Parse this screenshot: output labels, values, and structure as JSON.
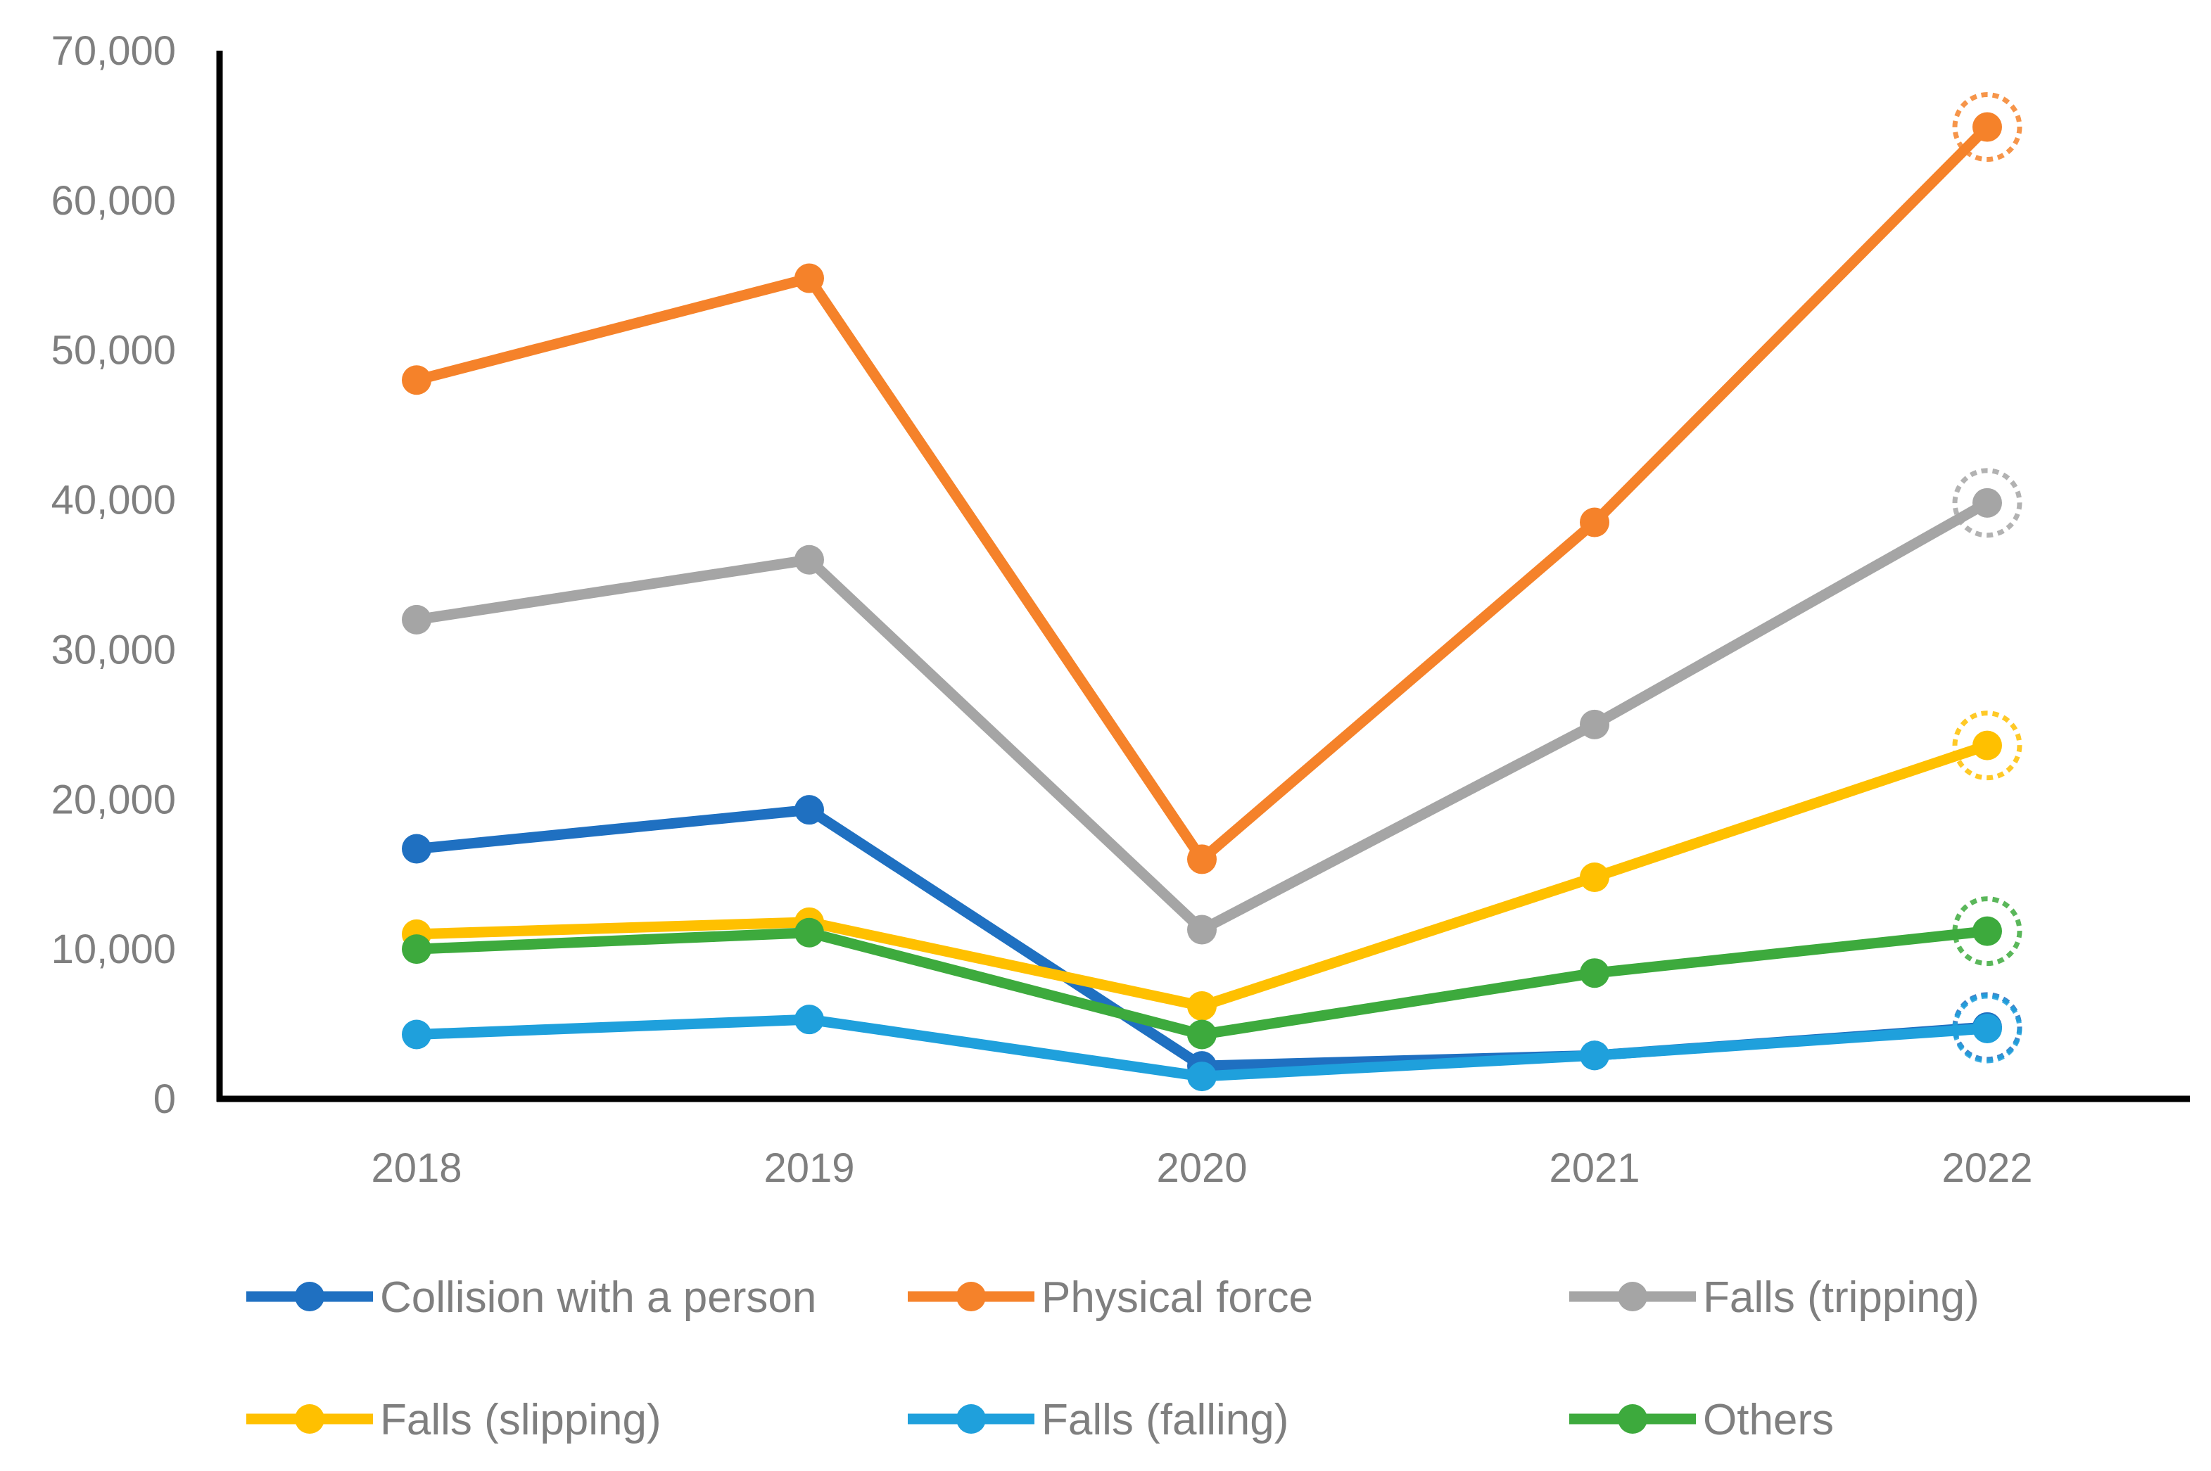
{
  "chart_data": {
    "type": "line",
    "title": "",
    "xlabel": "",
    "ylabel": "",
    "x": [
      "2018",
      "2019",
      "2020",
      "2021",
      "2022"
    ],
    "ylim": [
      0,
      70000
    ],
    "y_ticks": [
      "0",
      "10,000",
      "20,000",
      "30,000",
      "40,000",
      "50,000",
      "60,000",
      "70,000"
    ],
    "grid": false,
    "legend_position": "bottom",
    "highlight_last_point": true,
    "series": [
      {
        "name": "Collision with a person",
        "color": "#1f70c1",
        "values": [
          16700,
          19300,
          2200,
          2900,
          4800
        ]
      },
      {
        "name": "Physical force",
        "color": "#f5822a",
        "values": [
          48000,
          54800,
          16000,
          38500,
          64900
        ]
      },
      {
        "name": "Falls (tripping)",
        "color": "#a5a5a5",
        "values": [
          32000,
          36000,
          11300,
          25000,
          39800
        ]
      },
      {
        "name": "Falls (slipping)",
        "color": "#ffc000",
        "values": [
          11000,
          11800,
          6200,
          14800,
          23600
        ]
      },
      {
        "name": "Falls (falling)",
        "color": "#1fa0dc",
        "values": [
          4300,
          5300,
          1500,
          2900,
          4700
        ]
      },
      {
        "name": "Others",
        "color": "#3daa3d",
        "values": [
          10000,
          11100,
          4300,
          8400,
          11200
        ]
      }
    ]
  }
}
